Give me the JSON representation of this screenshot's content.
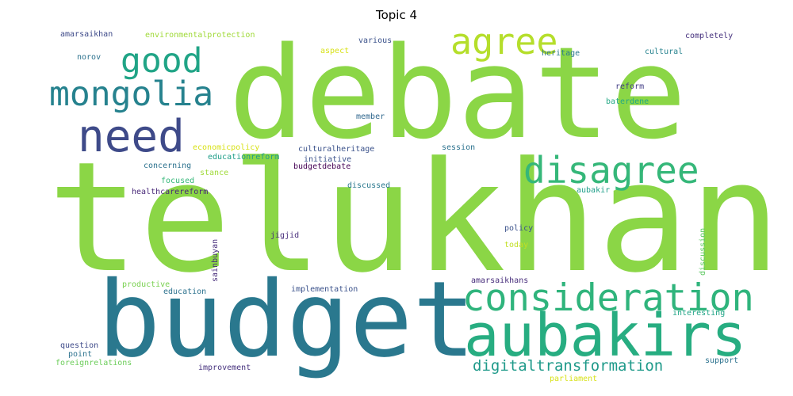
{
  "title": "Topic 4",
  "words": [
    {
      "text": "telukhan",
      "color": "#8bd646"
    },
    {
      "text": "debate",
      "color": "#8bd646"
    },
    {
      "text": "budget",
      "color": "#2a788e"
    },
    {
      "text": "aubakirs",
      "color": "#27ad81"
    },
    {
      "text": "consideration",
      "color": "#2fb47c"
    },
    {
      "text": "disagree",
      "color": "#35b779"
    },
    {
      "text": "agree",
      "color": "#b5de2b"
    },
    {
      "text": "mongolia",
      "color": "#26828e"
    },
    {
      "text": "good",
      "color": "#20a486"
    },
    {
      "text": "need",
      "color": "#3e4a89"
    },
    {
      "text": "digitaltransformation",
      "color": "#1f9a8a"
    },
    {
      "text": "amarsaikhan",
      "color": "#3e4a89"
    },
    {
      "text": "environmentalprotection",
      "color": "#a0da39"
    },
    {
      "text": "various",
      "color": "#3b528b"
    },
    {
      "text": "aspect",
      "color": "#d8e219"
    },
    {
      "text": "heritage",
      "color": "#2a788e"
    },
    {
      "text": "cultural",
      "color": "#26828e"
    },
    {
      "text": "completely",
      "color": "#46327e"
    },
    {
      "text": "norov",
      "color": "#2c728e"
    },
    {
      "text": "reform",
      "color": "#433e85"
    },
    {
      "text": "baterdene",
      "color": "#22a884"
    },
    {
      "text": "member",
      "color": "#31688e"
    },
    {
      "text": "economicpolicy",
      "color": "#d8e219"
    },
    {
      "text": "culturalheritage",
      "color": "#3b528b"
    },
    {
      "text": "session",
      "color": "#2c728e"
    },
    {
      "text": "educationreform",
      "color": "#1f9e89"
    },
    {
      "text": "initiative",
      "color": "#3b528b"
    },
    {
      "text": "budgetdebate",
      "color": "#440154"
    },
    {
      "text": "concerning",
      "color": "#2c728e"
    },
    {
      "text": "stance",
      "color": "#a0da39"
    },
    {
      "text": "focused",
      "color": "#35b779"
    },
    {
      "text": "discussed",
      "color": "#2a788e"
    },
    {
      "text": "healthcarereform",
      "color": "#482878"
    },
    {
      "text": "aubakir",
      "color": "#1f9e89"
    },
    {
      "text": "jigjid",
      "color": "#472d7b"
    },
    {
      "text": "policy",
      "color": "#3b528b"
    },
    {
      "text": "today",
      "color": "#c2df23"
    },
    {
      "text": "sainbuyan",
      "color": "#472d7b"
    },
    {
      "text": "discussion",
      "color": "#5ec962"
    },
    {
      "text": "productive",
      "color": "#7ad151"
    },
    {
      "text": "education",
      "color": "#2c728e"
    },
    {
      "text": "implementation",
      "color": "#3b528b"
    },
    {
      "text": "amarsaikhans",
      "color": "#472d7b"
    },
    {
      "text": "interesting",
      "color": "#20a486"
    },
    {
      "text": "question",
      "color": "#3e4a89"
    },
    {
      "text": "point",
      "color": "#2c728e"
    },
    {
      "text": "foreignrelations",
      "color": "#6ccd5a"
    },
    {
      "text": "improvement",
      "color": "#46327e"
    },
    {
      "text": "support",
      "color": "#2c728e"
    },
    {
      "text": "parliament",
      "color": "#d8e219"
    }
  ]
}
